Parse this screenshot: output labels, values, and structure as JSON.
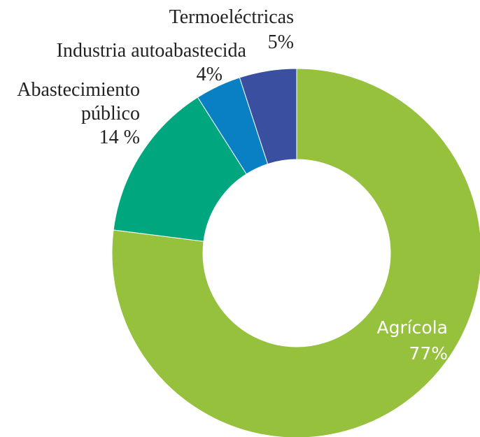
{
  "chart_data": {
    "type": "donut",
    "categories": [
      "Agrícola",
      "Abastecimiento público",
      "Industria autoabastecida",
      "Termoeléctricas"
    ],
    "values": [
      77,
      14,
      4,
      5
    ],
    "value_labels": [
      "77%",
      "14 %",
      "4%",
      "5%"
    ],
    "colors": [
      "#95c13d",
      "#00a77e",
      "#0a80c4",
      "#3a4f9f"
    ]
  }
}
